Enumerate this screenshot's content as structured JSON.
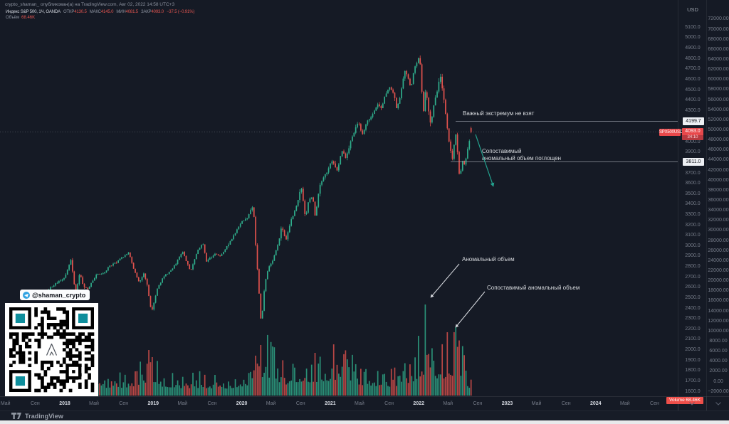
{
  "publish_bar": {
    "text": "crypto_shaman_  опубликован(а) на TradingView.com, Авг 02, 2022 14:58 UTC+3"
  },
  "legend": {
    "title": "Индекс S&P 500, 1Ч, OANDA",
    "open_label": "ОТКР",
    "open": "4130.5",
    "high_label": "МАКС",
    "high": "4145.0",
    "low_label": "МИН",
    "low": "4081.5",
    "close_label": "ЗАКР",
    "close": "4093.0",
    "change": "−37.5 (−0.91%)",
    "volume_label": "Объём",
    "volume_value": "68.46K"
  },
  "price_scale": {
    "currency": "USD",
    "min": 1600,
    "max": 5100,
    "step": 100
  },
  "volume_scale": {
    "min": -2000,
    "max": 72000,
    "step": 2000
  },
  "last_price": {
    "symbol": "SPX500USD",
    "price": "4093.0",
    "countdown": "34:10"
  },
  "levels": [
    {
      "price": 4199.7,
      "label": "4199.7",
      "text": "Важный экстремум не взят"
    },
    {
      "price": 3811.0,
      "label": "3811.0",
      "text": "Сопоставимый\nаномальный объем поглощен"
    }
  ],
  "volume_annotations": [
    {
      "text": "Аномальный объем"
    },
    {
      "text": "Сопоставимый аномальный объем"
    }
  ],
  "volume_tag": {
    "label": "Volume",
    "value": "68.46K"
  },
  "watermark": {
    "telegram_handle": "@shaman_crypto"
  },
  "footer": {
    "brand": "TradingView"
  },
  "timeline": [
    {
      "label": "Май",
      "yf": 2017.33
    },
    {
      "label": "Сен",
      "yf": 2017.665
    },
    {
      "label": "2018",
      "yf": 2018,
      "year": true
    },
    {
      "label": "Май",
      "yf": 2018.33
    },
    {
      "label": "Сен",
      "yf": 2018.665
    },
    {
      "label": "2019",
      "yf": 2019,
      "year": true
    },
    {
      "label": "Май",
      "yf": 2019.33
    },
    {
      "label": "Сен",
      "yf": 2019.665
    },
    {
      "label": "2020",
      "yf": 2020,
      "year": true
    },
    {
      "label": "Май",
      "yf": 2020.33
    },
    {
      "label": "Сен",
      "yf": 2020.665
    },
    {
      "label": "2021",
      "yf": 2021,
      "year": true
    },
    {
      "label": "Май",
      "yf": 2021.33
    },
    {
      "label": "Сен",
      "yf": 2021.665
    },
    {
      "label": "2022",
      "yf": 2022,
      "year": true
    },
    {
      "label": "Май",
      "yf": 2022.33
    },
    {
      "label": "Сен",
      "yf": 2022.665
    },
    {
      "label": "2023",
      "yf": 2023,
      "year": true
    },
    {
      "label": "Май",
      "yf": 2023.33
    },
    {
      "label": "Сен",
      "yf": 2023.665
    },
    {
      "label": "2024",
      "yf": 2024,
      "year": true
    },
    {
      "label": "Май",
      "yf": 2024.33
    },
    {
      "label": "Сен",
      "yf": 2024.665
    }
  ],
  "colors": {
    "background": "#151a25",
    "up": "#2fae8c",
    "down": "#e2524d",
    "axis_text": "#767c89",
    "year_text": "#d6dae2",
    "annotation_text": "#d7dade",
    "level_line": "#9aa0a8",
    "label_red": "#e8484b",
    "teal_arrow": "#23a08d",
    "white_arrow": "#d9dce1",
    "qr_teal": "#0e8e9c"
  },
  "chart_data": {
    "type": "candlestick",
    "symbol": "SPX500USD",
    "interval": "1Ч",
    "start_yf": 2017.8,
    "end_yf": 2022.6,
    "last_price": 4093.0,
    "key_levels": [
      4199.7,
      3811.0
    ],
    "last_candle": {
      "open": 4130.5,
      "high": 4145.0,
      "low": 4081.5,
      "close": 4093.0
    },
    "price_anchors": [
      [
        2017.8,
        2572
      ],
      [
        2017.92,
        2650
      ],
      [
        2018.0,
        2695
      ],
      [
        2018.07,
        2872
      ],
      [
        2018.12,
        2533
      ],
      [
        2018.17,
        2740
      ],
      [
        2018.21,
        2605
      ],
      [
        2018.26,
        2585
      ],
      [
        2018.36,
        2720
      ],
      [
        2018.44,
        2735
      ],
      [
        2018.5,
        2800
      ],
      [
        2018.6,
        2850
      ],
      [
        2018.72,
        2935
      ],
      [
        2018.79,
        2750
      ],
      [
        2018.84,
        2640
      ],
      [
        2018.89,
        2735
      ],
      [
        2018.93,
        2630
      ],
      [
        2018.98,
        2355
      ],
      [
        2019.05,
        2600
      ],
      [
        2019.12,
        2705
      ],
      [
        2019.18,
        2745
      ],
      [
        2019.25,
        2820
      ],
      [
        2019.33,
        2945
      ],
      [
        2019.42,
        2752
      ],
      [
        2019.5,
        2960
      ],
      [
        2019.56,
        3020
      ],
      [
        2019.6,
        2850
      ],
      [
        2019.66,
        2890
      ],
      [
        2019.7,
        2930
      ],
      [
        2019.75,
        2890
      ],
      [
        2019.83,
        2990
      ],
      [
        2019.92,
        3110
      ],
      [
        2020.0,
        3235
      ],
      [
        2020.07,
        3270
      ],
      [
        2020.09,
        3330
      ],
      [
        2020.13,
        3385
      ],
      [
        2020.16,
        2970
      ],
      [
        2020.18,
        2740
      ],
      [
        2020.22,
        2235
      ],
      [
        2020.26,
        2630
      ],
      [
        2020.3,
        2790
      ],
      [
        2020.35,
        2860
      ],
      [
        2020.42,
        3040
      ],
      [
        2020.45,
        3190
      ],
      [
        2020.5,
        3050
      ],
      [
        2020.55,
        3230
      ],
      [
        2020.62,
        3380
      ],
      [
        2020.67,
        3570
      ],
      [
        2020.72,
        3270
      ],
      [
        2020.76,
        3450
      ],
      [
        2020.8,
        3480
      ],
      [
        2020.83,
        3280
      ],
      [
        2020.88,
        3570
      ],
      [
        2020.92,
        3660
      ],
      [
        2020.97,
        3720
      ],
      [
        2021.02,
        3820
      ],
      [
        2021.08,
        3715
      ],
      [
        2021.13,
        3910
      ],
      [
        2021.18,
        3840
      ],
      [
        2021.22,
        3975
      ],
      [
        2021.28,
        4120
      ],
      [
        2021.32,
        4185
      ],
      [
        2021.36,
        4070
      ],
      [
        2021.42,
        4200
      ],
      [
        2021.47,
        4250
      ],
      [
        2021.53,
        4360
      ],
      [
        2021.58,
        4330
      ],
      [
        2021.62,
        4440
      ],
      [
        2021.67,
        4535
      ],
      [
        2021.72,
        4460
      ],
      [
        2021.75,
        4310
      ],
      [
        2021.79,
        4420
      ],
      [
        2021.84,
        4690
      ],
      [
        2021.88,
        4600
      ],
      [
        2021.91,
        4520
      ],
      [
        2021.95,
        4700
      ],
      [
        2021.99,
        4780
      ],
      [
        2022.01,
        4815
      ],
      [
        2022.03,
        4570
      ],
      [
        2022.05,
        4250
      ],
      [
        2022.065,
        4420
      ],
      [
        2022.08,
        4520
      ],
      [
        2022.1,
        4380
      ],
      [
        2022.12,
        4230
      ],
      [
        2022.14,
        4160
      ],
      [
        2022.16,
        4330
      ],
      [
        2022.19,
        4420
      ],
      [
        2022.22,
        4540
      ],
      [
        2022.245,
        4630
      ],
      [
        2022.27,
        4480
      ],
      [
        2022.3,
        4300
      ],
      [
        2022.32,
        4150
      ],
      [
        2022.345,
        3985
      ],
      [
        2022.37,
        3860
      ],
      [
        2022.39,
        3810
      ],
      [
        2022.41,
        4130
      ],
      [
        2022.43,
        4000
      ],
      [
        2022.455,
        3680
      ],
      [
        2022.475,
        3720
      ],
      [
        2022.5,
        3830
      ],
      [
        2022.52,
        3750
      ],
      [
        2022.545,
        3900
      ],
      [
        2022.565,
        3960
      ],
      [
        2022.585,
        4120
      ],
      [
        2022.6,
        4093
      ]
    ],
    "volume_anchors": [
      [
        2017.8,
        3400
      ],
      [
        2018.05,
        5200
      ],
      [
        2018.1,
        7200
      ],
      [
        2018.18,
        5200
      ],
      [
        2018.3,
        4200
      ],
      [
        2018.5,
        3200
      ],
      [
        2018.72,
        3600
      ],
      [
        2018.85,
        5200
      ],
      [
        2018.98,
        7300
      ],
      [
        2019.1,
        4200
      ],
      [
        2019.3,
        3300
      ],
      [
        2019.55,
        3400
      ],
      [
        2019.8,
        3000
      ],
      [
        2020.0,
        3600
      ],
      [
        2020.13,
        5200
      ],
      [
        2020.2,
        10300
      ],
      [
        2020.25,
        9300
      ],
      [
        2020.35,
        7200
      ],
      [
        2020.5,
        5400
      ],
      [
        2020.62,
        6400
      ],
      [
        2020.7,
        7000
      ],
      [
        2020.8,
        5800
      ],
      [
        2020.88,
        7200
      ],
      [
        2021.0,
        7400
      ],
      [
        2021.1,
        6800
      ],
      [
        2021.22,
        6000
      ],
      [
        2021.35,
        4600
      ],
      [
        2021.5,
        3600
      ],
      [
        2021.62,
        3900
      ],
      [
        2021.75,
        4600
      ],
      [
        2021.85,
        5400
      ],
      [
        2021.95,
        7400
      ],
      [
        2022.02,
        9200
      ],
      [
        2022.1,
        10800
      ],
      [
        2022.16,
        10200
      ],
      [
        2022.25,
        7800
      ],
      [
        2022.33,
        9600
      ],
      [
        2022.4,
        10600
      ],
      [
        2022.46,
        9200
      ],
      [
        2022.52,
        6200
      ],
      [
        2022.57,
        3600
      ],
      [
        2022.6,
        2600
      ]
    ],
    "volume_spikes": [
      {
        "yf": 2022.078,
        "volume": 18100,
        "color": "up"
      },
      {
        "yf": 2022.39,
        "volume": 12600,
        "color": "down"
      }
    ]
  }
}
